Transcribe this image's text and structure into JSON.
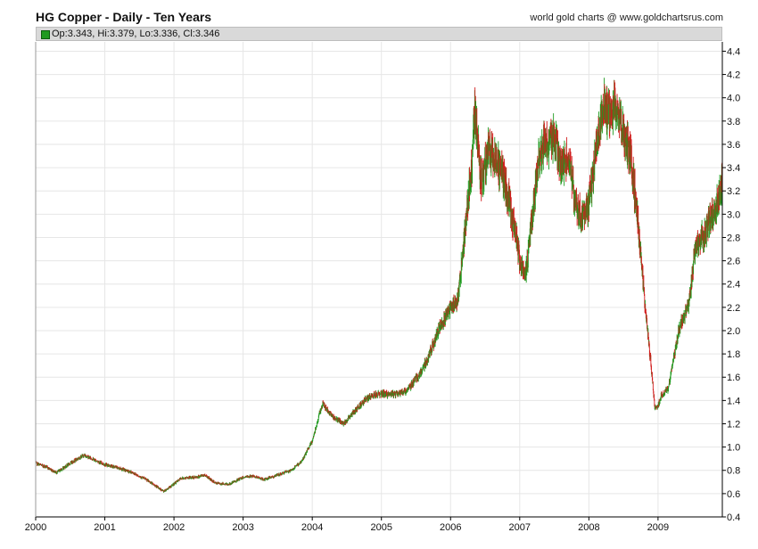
{
  "header": {
    "title": "HG Copper - Daily - Ten Years",
    "credit": "world gold charts @ www.goldchartsrus.com"
  },
  "legend": {
    "ohlc": "Op:3.343, Hi:3.379, Lo:3.336, Cl:3.346"
  },
  "colors": {
    "up": "#1f9a1f",
    "down": "#d11b1b",
    "grid": "#e6e6e6",
    "axis": "#000000",
    "legend_bg": "#d9d9d9"
  },
  "chart_data": {
    "type": "line",
    "title": "HG Copper - Daily - Ten Years",
    "style": "ohlc-bars",
    "x_tick_labels": [
      "2000",
      "2001",
      "2002",
      "2003",
      "2004",
      "2005",
      "2006",
      "2007",
      "2008",
      "2009"
    ],
    "y_tick_labels": [
      "0.4",
      "0.6",
      "0.8",
      "1.0",
      "1.2",
      "1.4",
      "1.6",
      "1.8",
      "2.0",
      "2.2",
      "2.4",
      "2.6",
      "2.8",
      "3.0",
      "3.2",
      "3.4",
      "3.6",
      "3.8",
      "4.0",
      "4.2",
      "4.4"
    ],
    "xlim": [
      2000.0,
      2009.93
    ],
    "ylim": [
      0.4,
      4.48
    ],
    "y_axis_side": "right",
    "grid": true,
    "series": [
      {
        "values": [
          [
            2000.0,
            0.86
          ],
          [
            2000.15,
            0.83
          ],
          [
            2000.3,
            0.78
          ],
          [
            2000.45,
            0.84
          ],
          [
            2000.55,
            0.88
          ],
          [
            2000.7,
            0.93
          ],
          [
            2000.85,
            0.89
          ],
          [
            2001.0,
            0.85
          ],
          [
            2001.2,
            0.82
          ],
          [
            2001.4,
            0.78
          ],
          [
            2001.6,
            0.72
          ],
          [
            2001.75,
            0.66
          ],
          [
            2001.85,
            0.62
          ],
          [
            2001.95,
            0.66
          ],
          [
            2002.1,
            0.73
          ],
          [
            2002.3,
            0.74
          ],
          [
            2002.45,
            0.76
          ],
          [
            2002.6,
            0.69
          ],
          [
            2002.8,
            0.68
          ],
          [
            2003.0,
            0.74
          ],
          [
            2003.15,
            0.75
          ],
          [
            2003.3,
            0.72
          ],
          [
            2003.5,
            0.76
          ],
          [
            2003.7,
            0.8
          ],
          [
            2003.85,
            0.88
          ],
          [
            2004.0,
            1.05
          ],
          [
            2004.1,
            1.28
          ],
          [
            2004.15,
            1.37
          ],
          [
            2004.3,
            1.26
          ],
          [
            2004.45,
            1.2
          ],
          [
            2004.6,
            1.3
          ],
          [
            2004.75,
            1.4
          ],
          [
            2004.9,
            1.45
          ],
          [
            2005.0,
            1.46
          ],
          [
            2005.15,
            1.45
          ],
          [
            2005.35,
            1.48
          ],
          [
            2005.55,
            1.62
          ],
          [
            2005.7,
            1.8
          ],
          [
            2005.85,
            2.05
          ],
          [
            2006.0,
            2.2
          ],
          [
            2006.1,
            2.25
          ],
          [
            2006.2,
            2.8
          ],
          [
            2006.3,
            3.4
          ],
          [
            2006.35,
            3.9
          ],
          [
            2006.45,
            3.25
          ],
          [
            2006.55,
            3.6
          ],
          [
            2006.65,
            3.45
          ],
          [
            2006.75,
            3.35
          ],
          [
            2006.85,
            3.1
          ],
          [
            2006.95,
            2.8
          ],
          [
            2007.0,
            2.6
          ],
          [
            2007.08,
            2.45
          ],
          [
            2007.2,
            3.1
          ],
          [
            2007.3,
            3.55
          ],
          [
            2007.4,
            3.6
          ],
          [
            2007.5,
            3.65
          ],
          [
            2007.6,
            3.4
          ],
          [
            2007.7,
            3.5
          ],
          [
            2007.8,
            3.1
          ],
          [
            2007.9,
            2.95
          ],
          [
            2008.0,
            3.1
          ],
          [
            2008.1,
            3.5
          ],
          [
            2008.2,
            3.95
          ],
          [
            2008.3,
            3.85
          ],
          [
            2008.4,
            3.95
          ],
          [
            2008.5,
            3.7
          ],
          [
            2008.6,
            3.5
          ],
          [
            2008.7,
            3.0
          ],
          [
            2008.8,
            2.3
          ],
          [
            2008.9,
            1.7
          ],
          [
            2008.95,
            1.35
          ],
          [
            2009.0,
            1.35
          ],
          [
            2009.05,
            1.45
          ],
          [
            2009.15,
            1.5
          ],
          [
            2009.3,
            2.0
          ],
          [
            2009.45,
            2.25
          ],
          [
            2009.55,
            2.75
          ],
          [
            2009.65,
            2.8
          ],
          [
            2009.75,
            2.95
          ],
          [
            2009.85,
            3.1
          ],
          [
            2009.93,
            3.25
          ]
        ]
      }
    ]
  }
}
